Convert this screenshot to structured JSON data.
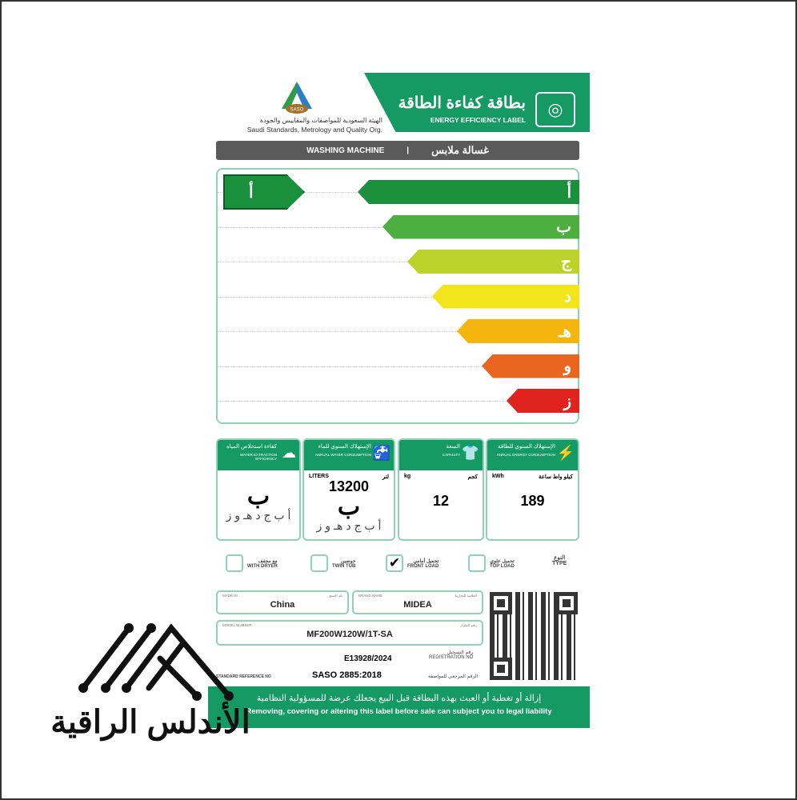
{
  "header": {
    "title_ar": "بطاقة كفاءة الطاقة",
    "title_en": "ENERGY EFFICIENCY LABEL",
    "org_ar": "الهيئة السعودية للمواصفات والمقاييس والجودة",
    "org_en": "Saudi Standards, Metrology and Quality Org.",
    "org_logo_text": "SASO",
    "icon": "washing-machine-icon"
  },
  "category": {
    "en": "WASHING MACHINE",
    "ar": "غسالة ملابس"
  },
  "scale": {
    "classes": [
      {
        "label": "أ",
        "color": "#1a8f3c"
      },
      {
        "label": "ب",
        "color": "#4caf3f"
      },
      {
        "label": "ج",
        "color": "#bcd32b"
      },
      {
        "label": "د",
        "color": "#f2e51b"
      },
      {
        "label": "هـ",
        "color": "#f5b50f"
      },
      {
        "label": "و",
        "color": "#e8661f"
      },
      {
        "label": "ز",
        "color": "#e0231f"
      }
    ],
    "rating": "أ"
  },
  "boxes": {
    "energy": {
      "ar": "الإستهلاك السنوي للطاقة",
      "en": "ANNUAL ENERGY CONSUMPTION",
      "unit_en": "kWh",
      "unit_ar": "كيلو واط ساعة",
      "value": "189"
    },
    "capacity": {
      "ar": "السعة",
      "en": "CAPACITY",
      "unit_en": "kg",
      "unit_ar": "كجم",
      "value": "12"
    },
    "water": {
      "ar": "الإستهلاك السنوي للماء",
      "en": "ANNUAL WATER CONSUMPTION",
      "unit_en": "LITERS",
      "unit_ar": "لتر",
      "value": "13200",
      "grade": "ب",
      "scale": "أ ب ج د هـ و ز"
    },
    "extraction": {
      "ar": "كفاءة استخلاص المياه",
      "en": "WATER EXTRACTION EFFICIENCY",
      "grade": "ب",
      "scale": "أ ب ج د هـ و ز"
    }
  },
  "type": {
    "label_ar": "النوع",
    "label_en": "TYPE",
    "options": [
      {
        "ar": "تحميل علوي",
        "en": "TOP LOAD",
        "checked": false
      },
      {
        "ar": "تحميل أمامي",
        "en": "FRONT LOAD",
        "checked": true
      },
      {
        "ar": "حوضين",
        "en": "TWIN TUB",
        "checked": false
      },
      {
        "ar": "مع مجفف",
        "en": "WITH DRYER",
        "checked": false
      }
    ]
  },
  "info": {
    "made_in": {
      "en": "MADE IN",
      "ar": "بلد الصنع",
      "value": "China"
    },
    "brand": {
      "en": "BRAND NAME",
      "ar": "العلامة التجارية",
      "value": "MIDEA"
    },
    "model": {
      "en": "MODEL NUMBER",
      "ar": "رقم الطراز",
      "value": "MF200W120W/1T-SA"
    },
    "registration": {
      "ar": "رقم التسجيل",
      "en": "REGISTRATION NO",
      "value": "E13928/2024"
    },
    "standard": {
      "en": "STANDARD REFERENCE NO",
      "ar": "الرقم المرجعي للمواصفة",
      "value": "SASO 2885:2018"
    }
  },
  "footer": {
    "ar": "إزالة أو تغطية أو العبث بهذه البطاقة قبل البيع يجعلك عرضة للمسؤولية النظامية",
    "en": "Removing, covering or altering this label before sale can subject you to legal liability"
  },
  "watermark": {
    "text": "الأندلس الراقية"
  }
}
